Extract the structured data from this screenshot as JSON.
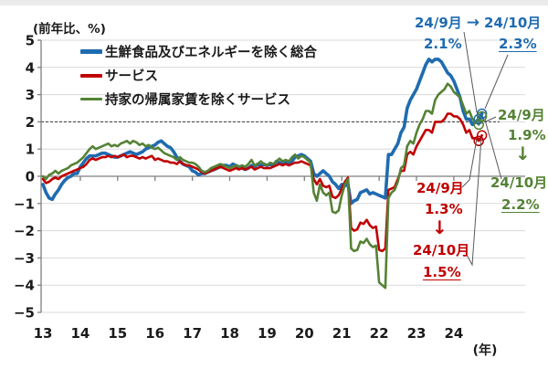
{
  "header": {
    "unit_label": "(前年比、%)"
  },
  "legend": {
    "items": [
      {
        "id": "core",
        "label": "生鮮食品及びエネルギーを除く総合",
        "color": "#1f6bb0"
      },
      {
        "id": "services",
        "label": "サービス",
        "color": "#c00000"
      },
      {
        "id": "services_ex_rent",
        "label": "持家の帰属家賃を除くサービス",
        "color": "#548235"
      }
    ]
  },
  "chart_data": {
    "type": "line",
    "title": "",
    "ylabel": "(前年比、%)",
    "xlabel": "(年)",
    "ylim": [
      -5,
      5
    ],
    "grid": "horizontal",
    "legend_position": "top-left-inside",
    "x_start": "2013-01",
    "x_end": "2024-10",
    "x_freq": "monthly",
    "x_tick_labels": [
      "13",
      "14",
      "15",
      "16",
      "17",
      "18",
      "19",
      "20",
      "21",
      "22",
      "23",
      "24"
    ],
    "y_tick_labels": [
      "5",
      "4",
      "3",
      "2",
      "1",
      "0",
      "−1",
      "−2",
      "−3",
      "−4",
      "−5"
    ],
    "reference_line": {
      "value": 2,
      "style": "dashed"
    },
    "series": [
      {
        "id": "core",
        "name": "生鮮食品及びエネルギーを除く総合",
        "color": "#1f6bb0",
        "values": [
          -0.3,
          -0.6,
          -0.8,
          -0.85,
          -0.65,
          -0.5,
          -0.3,
          -0.15,
          -0.05,
          0,
          0.1,
          0.1,
          0.35,
          0.5,
          0.65,
          0.75,
          0.75,
          0.75,
          0.8,
          0.85,
          0.85,
          0.8,
          0.75,
          0.7,
          0.7,
          0.75,
          0.8,
          0.85,
          0.9,
          0.85,
          0.8,
          0.85,
          0.9,
          1,
          1.05,
          1.1,
          1.15,
          1.25,
          1.3,
          1.2,
          1.1,
          1.05,
          0.9,
          0.7,
          0.55,
          0.45,
          0.4,
          0.35,
          0.2,
          0.15,
          0.05,
          0.1,
          0.1,
          0.15,
          0.2,
          0.25,
          0.3,
          0.35,
          0.4,
          0.4,
          0.35,
          0.45,
          0.4,
          0.35,
          0.3,
          0.25,
          0.3,
          0.4,
          0.35,
          0.45,
          0.4,
          0.45,
          0.4,
          0.45,
          0.4,
          0.55,
          0.5,
          0.5,
          0.55,
          0.5,
          0.55,
          0.7,
          0.75,
          0.8,
          0.75,
          0.65,
          0.55,
          0.1,
          0,
          0.1,
          0.2,
          0.1,
          0,
          -0.2,
          -0.3,
          -0.45,
          -0.3,
          -0.35,
          -0.3,
          -1,
          -0.9,
          -0.85,
          -0.6,
          -0.55,
          -0.5,
          -0.65,
          -0.6,
          -0.65,
          -0.7,
          -0.75,
          -0.8,
          0.8,
          0.8,
          1,
          1.2,
          1.6,
          1.8,
          2.5,
          2.8,
          3,
          3.2,
          3.5,
          3.8,
          4.1,
          4.3,
          4.2,
          4.3,
          4.3,
          4.2,
          4,
          3.8,
          3.7,
          3.5,
          3.2,
          2.9,
          2.4,
          2.1,
          2.1,
          1.9,
          2,
          2.1,
          2.3
        ]
      },
      {
        "id": "services",
        "name": "サービス",
        "color": "#c00000",
        "values": [
          -0.1,
          -0.25,
          -0.2,
          -0.1,
          -0.05,
          -0.1,
          0,
          0.05,
          0.1,
          0.15,
          0.2,
          0.25,
          0.3,
          0.35,
          0.45,
          0.6,
          0.65,
          0.6,
          0.65,
          0.7,
          0.7,
          0.75,
          0.7,
          0.75,
          0.7,
          0.75,
          0.8,
          0.7,
          0.75,
          0.75,
          0.7,
          0.65,
          0.7,
          0.65,
          0.7,
          0.75,
          0.6,
          0.65,
          0.6,
          0.55,
          0.55,
          0.5,
          0.5,
          0.45,
          0.55,
          0.45,
          0.4,
          0.4,
          0.35,
          0.3,
          0.25,
          0.15,
          0.1,
          0.15,
          0.2,
          0.25,
          0.3,
          0.35,
          0.3,
          0.25,
          0.2,
          0.25,
          0.3,
          0.25,
          0.3,
          0.25,
          0.3,
          0.35,
          0.25,
          0.3,
          0.35,
          0.3,
          0.3,
          0.3,
          0.35,
          0.4,
          0.45,
          0.4,
          0.45,
          0.4,
          0.45,
          0.5,
          0.5,
          0.55,
          0.5,
          0.45,
          0.4,
          -0.1,
          -0.3,
          -0.1,
          -0.35,
          -0.4,
          -0.35,
          -0.75,
          -0.8,
          -0.7,
          -0.45,
          -0.2,
          -0.05,
          -1.9,
          -2,
          -1.95,
          -1.7,
          -1.75,
          -1.6,
          -1.8,
          -1.9,
          -1.85,
          -2.7,
          -2.75,
          -2.65,
          -0.5,
          -0.45,
          -0.4,
          -0.1,
          0.2,
          0.2,
          0.8,
          0.9,
          0.8,
          1.1,
          1.3,
          1.5,
          1.7,
          1.7,
          1.6,
          2,
          2,
          2,
          2.1,
          2.3,
          2.3,
          2.2,
          2.2,
          2.1,
          1.9,
          1.6,
          1.7,
          1.4,
          1.4,
          1.3,
          1.5
        ]
      },
      {
        "id": "services_ex_rent",
        "name": "持家の帰属家賃を除くサービス",
        "color": "#548235",
        "values": [
          0,
          -0.1,
          0.05,
          0.1,
          0.2,
          0.1,
          0.2,
          0.25,
          0.3,
          0.4,
          0.45,
          0.5,
          0.6,
          0.7,
          0.85,
          1,
          1.1,
          1,
          1.05,
          1.1,
          1.15,
          1.2,
          1.1,
          1.15,
          1.1,
          1.2,
          1.25,
          1.3,
          1.2,
          1.3,
          1.25,
          1.15,
          1.2,
          1.1,
          1.15,
          1.05,
          1,
          1.05,
          0.95,
          0.85,
          0.8,
          0.75,
          0.7,
          0.6,
          0.7,
          0.6,
          0.55,
          0.5,
          0.5,
          0.45,
          0.35,
          0.2,
          0.15,
          0.2,
          0.3,
          0.35,
          0.4,
          0.45,
          0.4,
          0.35,
          0.3,
          0.35,
          0.4,
          0.35,
          0.4,
          0.35,
          0.45,
          0.6,
          0.4,
          0.45,
          0.55,
          0.45,
          0.4,
          0.5,
          0.45,
          0.55,
          0.65,
          0.55,
          0.6,
          0.55,
          0.7,
          0.8,
          0.65,
          0.75,
          0.7,
          0.6,
          0.5,
          -0.6,
          -0.9,
          -0.3,
          -0.6,
          -0.7,
          -0.6,
          -1.3,
          -1.35,
          -1.25,
          -0.7,
          -0.3,
          -0.1,
          -2.65,
          -2.75,
          -2.7,
          -2.4,
          -2.45,
          -2.3,
          -2.5,
          -2.6,
          -2.55,
          -3.9,
          -4,
          -4.1,
          -0.8,
          -0.6,
          -0.5,
          -0.2,
          0.3,
          0.4,
          1.1,
          1.3,
          1.2,
          1.6,
          1.9,
          2.1,
          2.4,
          2.4,
          2.3,
          2.8,
          3,
          3.1,
          3.2,
          3.4,
          3.3,
          3.1,
          3,
          2.9,
          2.6,
          2.3,
          2.4,
          2.1,
          2,
          1.9,
          2.2
        ]
      }
    ]
  },
  "annotations": {
    "core": {
      "sep_label": "24/9月",
      "arrow": "→",
      "oct_label": "24/10月",
      "sep_value": "2.1%",
      "oct_value": "2.3%"
    },
    "services_ex_rent": {
      "sep_label": "24/9月",
      "sep_value": "1.9%",
      "down_arrow": "↓",
      "oct_label": "24/10月",
      "oct_value": "2.2%"
    },
    "services": {
      "sep_label": "24/9月",
      "sep_value": "1.3%",
      "down_arrow": "↓",
      "oct_label": "24/10月",
      "oct_value": "1.5%"
    }
  }
}
